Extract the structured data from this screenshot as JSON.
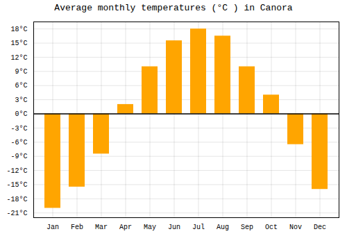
{
  "chart_data": {
    "type": "bar",
    "title": "Average monthly temperatures (°C ) in Canora",
    "categories": [
      "Jan",
      "Feb",
      "Mar",
      "Apr",
      "May",
      "Jun",
      "Jul",
      "Aug",
      "Sep",
      "Oct",
      "Nov",
      "Dec"
    ],
    "values": [
      -20,
      -15.5,
      -8.5,
      2,
      10,
      15.5,
      18,
      16.5,
      10,
      4,
      -6.5,
      -16
    ],
    "color": "#FFA500",
    "ylim": [
      -22,
      19.5
    ],
    "yticks": [
      {
        "value": -21,
        "label": "-21°C"
      },
      {
        "value": -18,
        "label": "-18°C"
      },
      {
        "value": -15,
        "label": "-15°C"
      },
      {
        "value": -12,
        "label": "-12°C"
      },
      {
        "value": -9,
        "label": "-9°C"
      },
      {
        "value": -6,
        "label": "-6°C"
      },
      {
        "value": -3,
        "label": "-3°C"
      },
      {
        "value": 0,
        "label": "0°C"
      },
      {
        "value": 3,
        "label": "3°C"
      },
      {
        "value": 6,
        "label": "6°C"
      },
      {
        "value": 9,
        "label": "9°C"
      },
      {
        "value": 12,
        "label": "12°C"
      },
      {
        "value": 15,
        "label": "15°C"
      },
      {
        "value": 18,
        "label": "18°C"
      }
    ],
    "grid": true
  }
}
